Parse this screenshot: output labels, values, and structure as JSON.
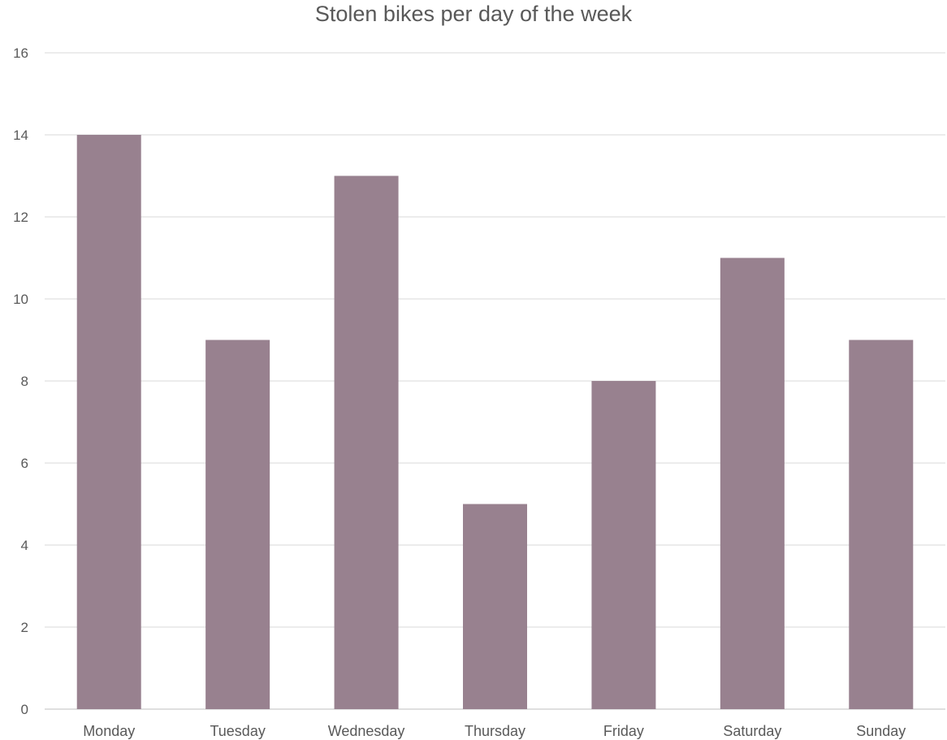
{
  "chart_data": {
    "type": "bar",
    "title": "Stolen bikes per day of the week",
    "xlabel": "",
    "ylabel": "",
    "categories": [
      "Monday",
      "Tuesday",
      "Wednesday",
      "Thursday",
      "Friday",
      "Saturday",
      "Sunday"
    ],
    "values": [
      14,
      9,
      13,
      5,
      8,
      11,
      9
    ],
    "ylim": [
      0,
      16
    ],
    "yticks": [
      0,
      2,
      4,
      6,
      8,
      10,
      12,
      14,
      16
    ],
    "grid": true,
    "legend": "none",
    "bar_color": "#98818f"
  }
}
